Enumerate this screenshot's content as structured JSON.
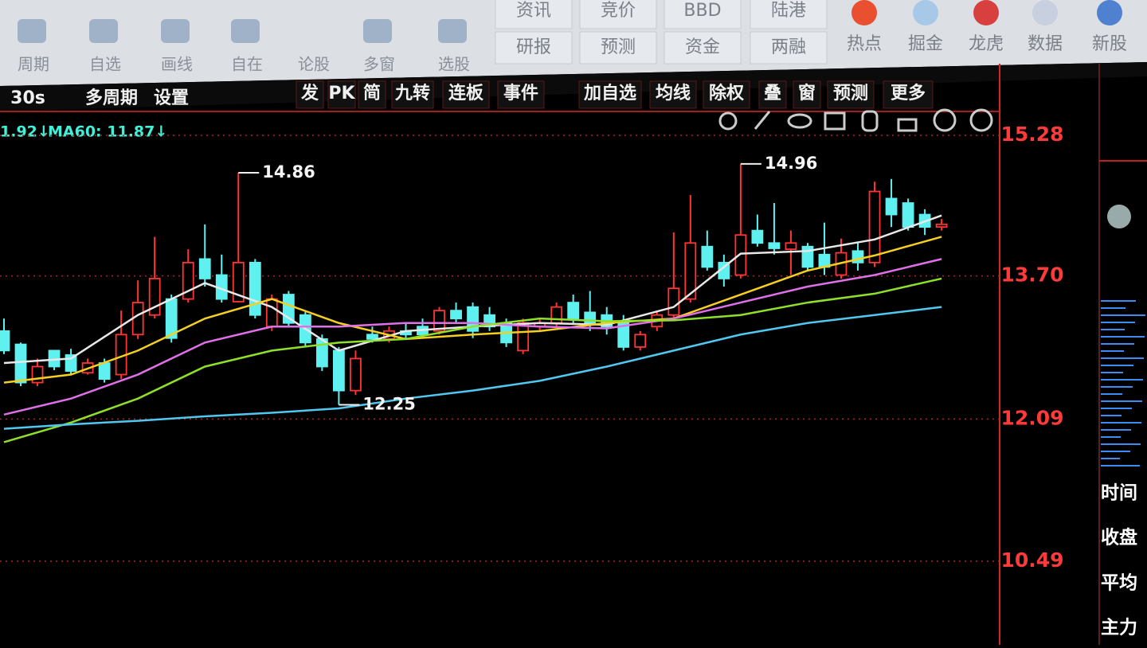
{
  "toolbar": {
    "tools": [
      "周期",
      "自选",
      "画线",
      "自在",
      "论股",
      "多窗",
      "选股"
    ],
    "buttons": [
      [
        "资讯",
        "研报"
      ],
      [
        "竞价",
        "预测"
      ],
      [
        "BBD",
        "资金"
      ],
      [
        "陆港",
        "两融"
      ]
    ],
    "apps": [
      "热点",
      "掘金",
      "龙虎",
      "数据",
      "新股"
    ]
  },
  "menubar": {
    "left": [
      "30s",
      "多周期",
      "设置"
    ],
    "right": [
      "发",
      "PK",
      "简",
      "九转",
      "连板",
      "事件",
      "加自选",
      "均线",
      "除权",
      "叠",
      "窗",
      "预测",
      "更多"
    ]
  },
  "ma_labels": [
    "1.92↓",
    "MA60: 11.87↓"
  ],
  "side_panel": [
    "时间",
    "收盘",
    "平均",
    "主力"
  ],
  "chart_data": {
    "type": "candlestick",
    "open": [
      13.08,
      12.93,
      12.5,
      12.86,
      12.81,
      12.61,
      12.72,
      12.59,
      13.04,
      13.26,
      13.44,
      13.44,
      13.89,
      13.71,
      13.41,
      13.85,
      13.13,
      13.49,
      13.26,
      12.99,
      12.86,
      12.41,
      13.04,
      12.99,
      13.08,
      13.13,
      13.08,
      13.31,
      13.35,
      13.26,
      13.17,
      12.86,
      13.13,
      13.17,
      13.4,
      13.29,
      13.26,
      13.17,
      12.9,
      13.13,
      13.26,
      13.44,
      14.03,
      13.85,
      13.71,
      14.21,
      14.07,
      14.0,
      14.03,
      13.94,
      13.71,
      13.98,
      13.85,
      14.57,
      14.52,
      14.39,
      14.25
    ],
    "high": [
      13.22,
      12.95,
      12.77,
      12.86,
      12.88,
      12.77,
      12.77,
      13.31,
      13.65,
      14.14,
      13.49,
      14.0,
      14.28,
      13.94,
      14.86,
      13.89,
      13.49,
      13.53,
      13.31,
      13.04,
      12.9,
      12.86,
      13.13,
      13.13,
      13.17,
      13.22,
      13.35,
      13.4,
      13.4,
      13.35,
      13.22,
      13.22,
      13.22,
      13.4,
      13.49,
      13.53,
      13.35,
      13.26,
      13.08,
      13.31,
      14.19,
      14.61,
      14.21,
      13.94,
      14.96,
      14.39,
      14.52,
      14.21,
      14.07,
      14.3,
      14.12,
      14.07,
      14.76,
      14.79,
      14.57,
      14.45,
      14.34
    ],
    "low": [
      12.82,
      12.46,
      12.46,
      12.64,
      12.59,
      12.59,
      12.5,
      12.54,
      12.99,
      13.22,
      12.95,
      13.4,
      13.58,
      13.4,
      13.4,
      13.22,
      13.08,
      13.13,
      12.9,
      12.63,
      12.25,
      12.36,
      12.95,
      12.95,
      12.99,
      13.0,
      13.04,
      13.17,
      13.0,
      13.08,
      12.9,
      12.82,
      13.08,
      13.13,
      13.17,
      13.08,
      13.04,
      12.86,
      12.86,
      13.08,
      13.22,
      13.4,
      13.76,
      13.58,
      13.67,
      14.03,
      13.94,
      13.71,
      13.76,
      13.71,
      13.67,
      13.76,
      13.8,
      14.25,
      14.21,
      14.16,
      14.21
    ],
    "close": [
      12.86,
      12.5,
      12.68,
      12.68,
      12.63,
      12.72,
      12.54,
      13.04,
      13.4,
      13.67,
      13.0,
      13.85,
      13.67,
      13.44,
      13.85,
      13.26,
      13.44,
      13.17,
      12.95,
      12.68,
      12.41,
      12.77,
      12.99,
      13.08,
      13.04,
      13.04,
      13.31,
      13.22,
      13.08,
      13.13,
      12.95,
      13.17,
      13.17,
      13.35,
      13.22,
      13.17,
      13.13,
      12.9,
      13.04,
      13.26,
      13.56,
      14.07,
      13.8,
      13.67,
      14.16,
      14.07,
      14.01,
      14.07,
      13.8,
      13.8,
      13.96,
      13.85,
      14.65,
      14.39,
      14.25,
      14.25,
      14.28
    ],
    "up_color": "#ff3434",
    "down_color": "#5ff0f0",
    "lines": [
      {
        "color": "#e8e8e8",
        "x": [
          0,
          4,
          8,
          12,
          16,
          20,
          24,
          28,
          32,
          36,
          40,
          44,
          48,
          52,
          56
        ],
        "values": [
          12.72,
          12.77,
          13.26,
          13.62,
          13.35,
          12.86,
          13.08,
          13.13,
          13.17,
          13.15,
          13.35,
          13.95,
          13.98,
          14.11,
          14.38
        ]
      },
      {
        "color": "#f5d020",
        "x": [
          0,
          4,
          8,
          12,
          16,
          20,
          24,
          28,
          32,
          36,
          40,
          44,
          48,
          52,
          56
        ],
        "values": [
          12.5,
          12.59,
          12.86,
          13.22,
          13.44,
          13.17,
          12.99,
          13.04,
          13.08,
          13.17,
          13.22,
          13.49,
          13.76,
          13.93,
          14.14
        ]
      },
      {
        "color": "#e070e8",
        "x": [
          0,
          4,
          8,
          12,
          16,
          20,
          24,
          28,
          32,
          36,
          40,
          44,
          48,
          52,
          56
        ],
        "values": [
          12.14,
          12.32,
          12.59,
          12.95,
          13.13,
          13.13,
          13.17,
          13.17,
          13.13,
          13.11,
          13.22,
          13.4,
          13.58,
          13.71,
          13.89
        ]
      },
      {
        "color": "#8ee02a",
        "x": [
          0,
          4,
          8,
          12,
          16,
          20,
          24,
          28,
          32,
          36,
          40,
          44,
          48,
          52,
          56
        ],
        "values": [
          11.83,
          12.05,
          12.32,
          12.68,
          12.86,
          12.95,
          12.99,
          13.13,
          13.22,
          13.19,
          13.2,
          13.26,
          13.4,
          13.5,
          13.67
        ]
      },
      {
        "color": "#50c8f0",
        "x": [
          0,
          4,
          8,
          12,
          16,
          20,
          24,
          28,
          32,
          36,
          40,
          44,
          48,
          52,
          56
        ],
        "values": [
          11.98,
          12.03,
          12.07,
          12.12,
          12.16,
          12.21,
          12.32,
          12.41,
          12.52,
          12.68,
          12.86,
          13.04,
          13.17,
          13.26,
          13.35
        ]
      }
    ],
    "ylim": [
      9.55,
      15.55
    ],
    "yticks": [
      15.28,
      {
        "value": 13.7,
        "label": "13.70"
      },
      12.09,
      10.49
    ],
    "grid": true
  }
}
